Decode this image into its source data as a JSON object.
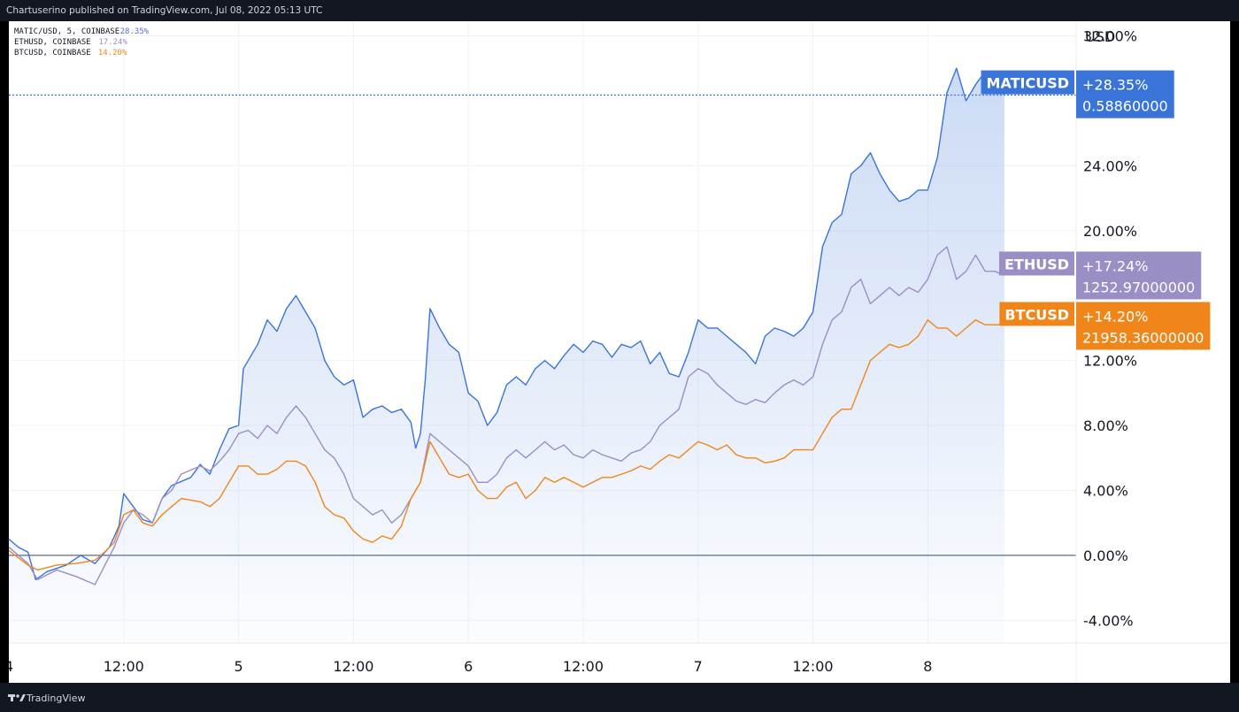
{
  "header": {
    "credit": "Chartuserino published on TradingView.com, Jul 08, 2022 05:13 UTC"
  },
  "footer": {
    "brand": "TradingView"
  },
  "legend": [
    {
      "label": "MATIC/USD, 5, COINBASE",
      "value": "28.35%",
      "color": "#5b6fce"
    },
    {
      "label": "ETHUSD, COINBASE",
      "value": "17.24%",
      "color": "#9b8ec4"
    },
    {
      "label": "BTCUSD, COINBASE",
      "value": "14.20%",
      "color": "#f0861a"
    }
  ],
  "chart_data": {
    "type": "line",
    "y_axis_title": "USD",
    "y_unit": "percent",
    "ylim": [
      -5.4,
      32.9
    ],
    "y_ticks": [
      "32.00%",
      "24.00%",
      "20.00%",
      "12.00%",
      "8.00%",
      "4.00%",
      "0.00%",
      "-4.00%"
    ],
    "y_tick_values": [
      32,
      24,
      20,
      12,
      8,
      4,
      0,
      -4
    ],
    "x_unit": "hours since first visible tick (Jul 4 00:00 UTC)",
    "xlim": [
      0,
      111.5
    ],
    "x_ticks": [
      {
        "label": "4",
        "x": 0
      },
      {
        "label": "12:00",
        "x": 12
      },
      {
        "label": "5",
        "x": 24
      },
      {
        "label": "12:00",
        "x": 36
      },
      {
        "label": "6",
        "x": 48
      },
      {
        "label": "12:00",
        "x": 60
      },
      {
        "label": "7",
        "x": 72
      },
      {
        "label": "12:00",
        "x": 84
      },
      {
        "label": "8",
        "x": 96
      }
    ],
    "grid": true,
    "series": [
      {
        "name": "MATICUSD",
        "color": "#3a74d8",
        "area": true,
        "last_pct": "+28.35%",
        "last_price": "0.58860000",
        "points": [
          [
            0,
            1.0
          ],
          [
            1,
            0.5
          ],
          [
            2,
            0.2
          ],
          [
            2.8,
            -1.5
          ],
          [
            4,
            -1.0
          ],
          [
            6,
            -0.6
          ],
          [
            7.5,
            0.0
          ],
          [
            9,
            -0.5
          ],
          [
            10.5,
            0.5
          ],
          [
            11.5,
            1.8
          ],
          [
            12,
            3.8
          ],
          [
            13,
            3.0
          ],
          [
            14,
            2.2
          ],
          [
            15,
            2.0
          ],
          [
            16,
            3.5
          ],
          [
            17,
            4.3
          ],
          [
            19,
            4.8
          ],
          [
            20,
            5.6
          ],
          [
            21,
            5.0
          ],
          [
            22,
            6.5
          ],
          [
            23,
            7.8
          ],
          [
            24,
            8.0
          ],
          [
            24.5,
            11.5
          ],
          [
            26,
            13.0
          ],
          [
            27,
            14.5
          ],
          [
            28,
            13.8
          ],
          [
            29,
            15.2
          ],
          [
            30,
            16.0
          ],
          [
            31,
            15.0
          ],
          [
            32,
            14.0
          ],
          [
            33,
            12.0
          ],
          [
            34,
            11.0
          ],
          [
            35,
            10.5
          ],
          [
            36,
            10.8
          ],
          [
            37,
            8.5
          ],
          [
            38,
            9.0
          ],
          [
            39,
            9.2
          ],
          [
            40,
            8.8
          ],
          [
            41,
            9.0
          ],
          [
            42,
            8.2
          ],
          [
            42.5,
            6.6
          ],
          [
            43,
            7.5
          ],
          [
            43.5,
            10.8
          ],
          [
            44,
            15.2
          ],
          [
            45,
            14.0
          ],
          [
            46,
            13.0
          ],
          [
            47,
            12.5
          ],
          [
            48,
            10.0
          ],
          [
            49,
            9.5
          ],
          [
            50,
            8.0
          ],
          [
            51,
            8.8
          ],
          [
            52,
            10.5
          ],
          [
            53,
            11.0
          ],
          [
            54,
            10.5
          ],
          [
            55,
            11.5
          ],
          [
            56,
            12.0
          ],
          [
            57,
            11.5
          ],
          [
            58,
            12.3
          ],
          [
            59,
            13.0
          ],
          [
            60,
            12.5
          ],
          [
            61,
            13.2
          ],
          [
            62,
            13.0
          ],
          [
            63,
            12.2
          ],
          [
            64,
            13.0
          ],
          [
            65,
            12.8
          ],
          [
            66,
            13.2
          ],
          [
            67,
            11.8
          ],
          [
            68,
            12.5
          ],
          [
            69,
            11.2
          ],
          [
            70,
            11.0
          ],
          [
            71,
            12.5
          ],
          [
            72,
            14.5
          ],
          [
            73,
            14.0
          ],
          [
            74,
            14.0
          ],
          [
            75,
            13.5
          ],
          [
            76,
            13.0
          ],
          [
            77,
            12.5
          ],
          [
            78,
            11.8
          ],
          [
            79,
            13.5
          ],
          [
            80,
            14.0
          ],
          [
            81,
            13.8
          ],
          [
            82,
            13.5
          ],
          [
            83,
            14.0
          ],
          [
            84,
            15.0
          ],
          [
            85,
            19.0
          ],
          [
            86,
            20.5
          ],
          [
            87,
            21.0
          ],
          [
            88,
            23.5
          ],
          [
            89,
            24.0
          ],
          [
            90,
            24.8
          ],
          [
            91,
            23.5
          ],
          [
            92,
            22.5
          ],
          [
            93,
            21.8
          ],
          [
            94,
            22.0
          ],
          [
            95,
            22.5
          ],
          [
            96,
            22.5
          ],
          [
            97,
            24.5
          ],
          [
            98,
            28.5
          ],
          [
            99,
            30.0
          ],
          [
            100,
            28.0
          ],
          [
            101,
            29.0
          ],
          [
            102,
            29.8
          ],
          [
            103,
            28.7
          ],
          [
            104,
            28.4
          ]
        ]
      },
      {
        "name": "ETHUSD",
        "color": "#9b8ec4",
        "last_pct": "+17.24%",
        "last_price": "1252.97000000",
        "points": [
          [
            0,
            0.5
          ],
          [
            2,
            -0.5
          ],
          [
            3,
            -1.5
          ],
          [
            5,
            -0.9
          ],
          [
            7,
            -1.3
          ],
          [
            9,
            -1.8
          ],
          [
            11,
            0.5
          ],
          [
            12,
            2.0
          ],
          [
            13,
            2.8
          ],
          [
            14,
            2.5
          ],
          [
            15,
            2.0
          ],
          [
            16,
            3.5
          ],
          [
            17,
            4.0
          ],
          [
            18,
            5.0
          ],
          [
            20,
            5.5
          ],
          [
            21,
            5.2
          ],
          [
            22,
            5.8
          ],
          [
            23,
            6.5
          ],
          [
            24,
            7.5
          ],
          [
            25,
            7.7
          ],
          [
            26,
            7.2
          ],
          [
            27,
            8.0
          ],
          [
            28,
            7.5
          ],
          [
            29,
            8.5
          ],
          [
            30,
            9.2
          ],
          [
            31,
            8.5
          ],
          [
            32,
            7.5
          ],
          [
            33,
            6.5
          ],
          [
            34,
            6.0
          ],
          [
            35,
            5.0
          ],
          [
            36,
            3.5
          ],
          [
            37,
            3.0
          ],
          [
            38,
            2.5
          ],
          [
            39,
            2.8
          ],
          [
            40,
            2.0
          ],
          [
            41,
            2.5
          ],
          [
            42,
            3.5
          ],
          [
            43,
            4.5
          ],
          [
            44,
            7.5
          ],
          [
            45,
            7.0
          ],
          [
            46,
            6.5
          ],
          [
            47,
            6.0
          ],
          [
            48,
            5.5
          ],
          [
            49,
            4.5
          ],
          [
            50,
            4.5
          ],
          [
            51,
            5.0
          ],
          [
            52,
            6.0
          ],
          [
            53,
            6.5
          ],
          [
            54,
            6.0
          ],
          [
            55,
            6.5
          ],
          [
            56,
            7.0
          ],
          [
            57,
            6.5
          ],
          [
            58,
            6.8
          ],
          [
            59,
            6.2
          ],
          [
            60,
            6.0
          ],
          [
            61,
            6.5
          ],
          [
            62,
            6.2
          ],
          [
            63,
            6.0
          ],
          [
            64,
            5.8
          ],
          [
            65,
            6.3
          ],
          [
            66,
            6.5
          ],
          [
            67,
            7.0
          ],
          [
            68,
            8.0
          ],
          [
            69,
            8.5
          ],
          [
            70,
            9.0
          ],
          [
            71,
            11.0
          ],
          [
            72,
            11.5
          ],
          [
            73,
            11.2
          ],
          [
            74,
            10.5
          ],
          [
            75,
            10.0
          ],
          [
            76,
            9.5
          ],
          [
            77,
            9.3
          ],
          [
            78,
            9.6
          ],
          [
            79,
            9.4
          ],
          [
            80,
            10.0
          ],
          [
            81,
            10.5
          ],
          [
            82,
            10.8
          ],
          [
            83,
            10.5
          ],
          [
            84,
            11.0
          ],
          [
            85,
            13.0
          ],
          [
            86,
            14.5
          ],
          [
            87,
            15.0
          ],
          [
            88,
            16.5
          ],
          [
            89,
            17.0
          ],
          [
            90,
            15.5
          ],
          [
            91,
            16.0
          ],
          [
            92,
            16.5
          ],
          [
            93,
            16.0
          ],
          [
            94,
            16.5
          ],
          [
            95,
            16.2
          ],
          [
            96,
            17.0
          ],
          [
            97,
            18.5
          ],
          [
            98,
            19.0
          ],
          [
            99,
            17.0
          ],
          [
            100,
            17.5
          ],
          [
            101,
            18.5
          ],
          [
            102,
            17.5
          ],
          [
            103,
            17.5
          ],
          [
            104,
            17.24
          ]
        ]
      },
      {
        "name": "BTCUSD",
        "color": "#f0861a",
        "last_pct": "+14.20%",
        "last_price": "21958.36000000",
        "points": [
          [
            0,
            0.3
          ],
          [
            2,
            -0.6
          ],
          [
            3,
            -0.9
          ],
          [
            5,
            -0.6
          ],
          [
            7,
            -0.5
          ],
          [
            9,
            -0.3
          ],
          [
            10,
            0.2
          ],
          [
            11,
            0.8
          ],
          [
            12,
            2.5
          ],
          [
            13,
            2.8
          ],
          [
            14,
            2.0
          ],
          [
            15,
            1.8
          ],
          [
            16,
            2.5
          ],
          [
            17,
            3.0
          ],
          [
            18,
            3.5
          ],
          [
            20,
            3.3
          ],
          [
            21,
            3.0
          ],
          [
            22,
            3.5
          ],
          [
            23,
            4.5
          ],
          [
            24,
            5.5
          ],
          [
            25,
            5.5
          ],
          [
            26,
            5.0
          ],
          [
            27,
            5.0
          ],
          [
            28,
            5.3
          ],
          [
            29,
            5.8
          ],
          [
            30,
            5.8
          ],
          [
            31,
            5.5
          ],
          [
            32,
            4.5
          ],
          [
            33,
            3.0
          ],
          [
            34,
            2.5
          ],
          [
            35,
            2.3
          ],
          [
            36,
            1.5
          ],
          [
            37,
            1.0
          ],
          [
            38,
            0.8
          ],
          [
            39,
            1.2
          ],
          [
            40,
            1.0
          ],
          [
            41,
            1.8
          ],
          [
            42,
            3.5
          ],
          [
            43,
            4.5
          ],
          [
            44,
            7.0
          ],
          [
            45,
            6.0
          ],
          [
            46,
            5.0
          ],
          [
            47,
            4.8
          ],
          [
            48,
            5.0
          ],
          [
            49,
            4.0
          ],
          [
            50,
            3.5
          ],
          [
            51,
            3.5
          ],
          [
            52,
            4.2
          ],
          [
            53,
            4.5
          ],
          [
            54,
            3.5
          ],
          [
            55,
            4.0
          ],
          [
            56,
            4.8
          ],
          [
            57,
            4.5
          ],
          [
            58,
            4.8
          ],
          [
            59,
            4.5
          ],
          [
            60,
            4.2
          ],
          [
            61,
            4.5
          ],
          [
            62,
            4.8
          ],
          [
            63,
            4.8
          ],
          [
            64,
            5.0
          ],
          [
            65,
            5.2
          ],
          [
            66,
            5.5
          ],
          [
            67,
            5.3
          ],
          [
            68,
            5.8
          ],
          [
            69,
            6.2
          ],
          [
            70,
            6.0
          ],
          [
            71,
            6.5
          ],
          [
            72,
            7.0
          ],
          [
            73,
            6.8
          ],
          [
            74,
            6.5
          ],
          [
            75,
            6.8
          ],
          [
            76,
            6.2
          ],
          [
            77,
            6.0
          ],
          [
            78,
            6.0
          ],
          [
            79,
            5.7
          ],
          [
            80,
            5.8
          ],
          [
            81,
            6.0
          ],
          [
            82,
            6.5
          ],
          [
            83,
            6.5
          ],
          [
            84,
            6.5
          ],
          [
            85,
            7.5
          ],
          [
            86,
            8.5
          ],
          [
            87,
            9.0
          ],
          [
            88,
            9.0
          ],
          [
            89,
            10.5
          ],
          [
            90,
            12.0
          ],
          [
            91,
            12.5
          ],
          [
            92,
            13.0
          ],
          [
            93,
            12.8
          ],
          [
            94,
            13.0
          ],
          [
            95,
            13.5
          ],
          [
            96,
            14.5
          ],
          [
            97,
            14.0
          ],
          [
            98,
            14.0
          ],
          [
            99,
            13.5
          ],
          [
            100,
            14.0
          ],
          [
            101,
            14.5
          ],
          [
            102,
            14.2
          ],
          [
            103,
            14.2
          ],
          [
            104,
            14.2
          ]
        ]
      }
    ],
    "reference_lines": [
      {
        "y": 0.0,
        "color": "#5d6b8a"
      },
      {
        "y": 28.35,
        "color": "#3a74d8",
        "style": "dotted"
      }
    ]
  }
}
